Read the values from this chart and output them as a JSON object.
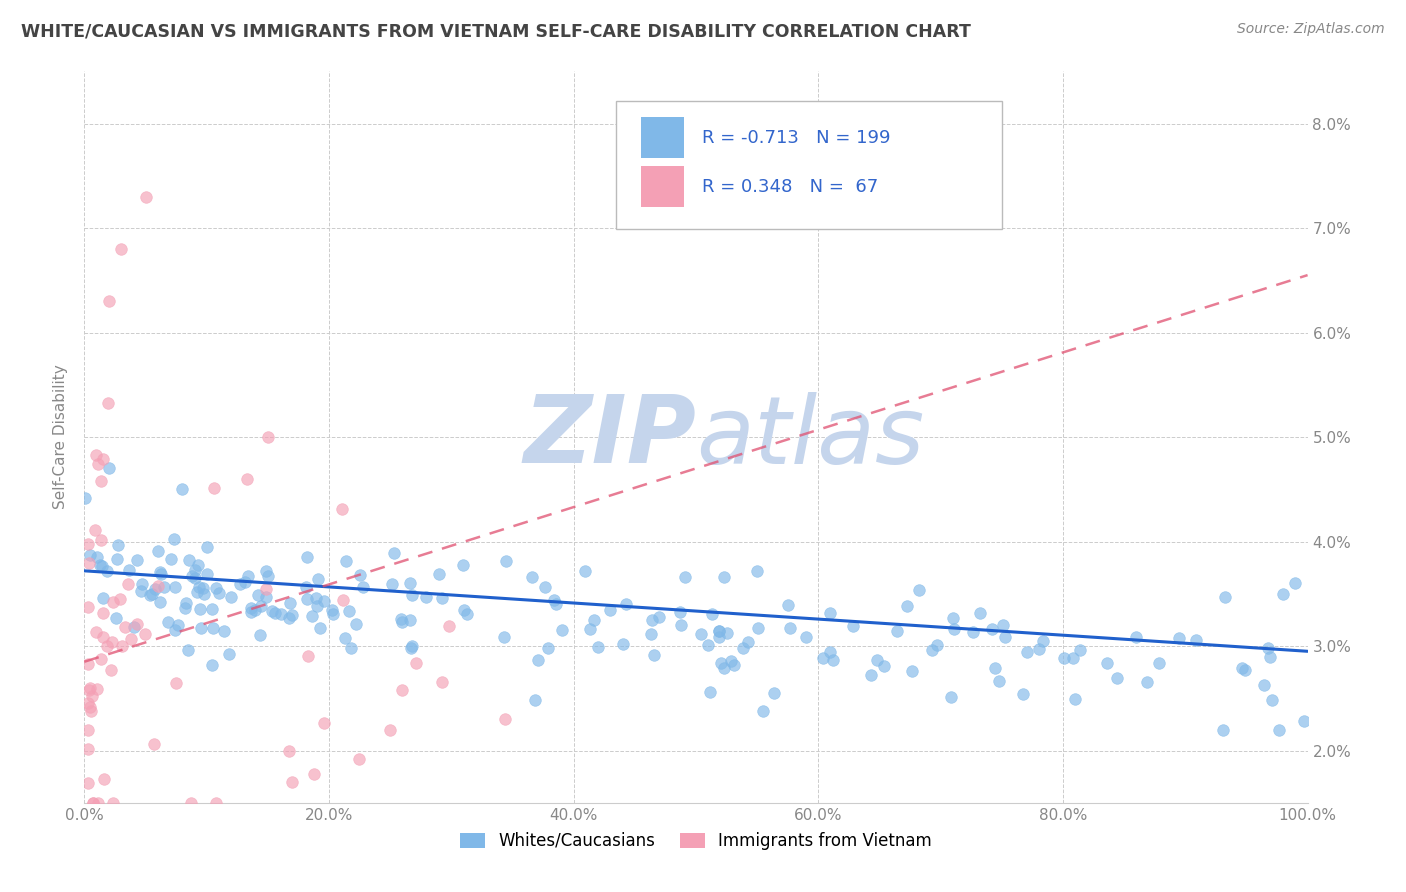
{
  "title": "WHITE/CAUCASIAN VS IMMIGRANTS FROM VIETNAM SELF-CARE DISABILITY CORRELATION CHART",
  "source_text": "Source: ZipAtlas.com",
  "ylabel": "Self-Care Disability",
  "xlim": [
    0,
    100
  ],
  "ylim": [
    1.5,
    8.5
  ],
  "yticks": [
    2.0,
    3.0,
    4.0,
    5.0,
    6.0,
    7.0,
    8.0
  ],
  "xticks": [
    0,
    20,
    40,
    60,
    80,
    100
  ],
  "xtick_labels": [
    "0.0%",
    "20.0%",
    "40.0%",
    "60.0%",
    "80.0%",
    "100.0%"
  ],
  "ytick_labels": [
    "2.0%",
    "3.0%",
    "4.0%",
    "5.0%",
    "6.0%",
    "7.0%",
    "8.0%"
  ],
  "blue_color": "#80b8e8",
  "pink_color": "#f4a0b5",
  "blue_line_color": "#2060cc",
  "pink_line_color": "#e05070",
  "title_color": "#444444",
  "source_color": "#888888",
  "grid_color": "#cccccc",
  "watermark_color_zip": "#c8d8f0",
  "watermark_color_atlas": "#c8d8f0",
  "R_blue": -0.713,
  "N_blue": 199,
  "R_pink": 0.348,
  "N_pink": 67,
  "legend_label_blue": "Whites/Caucasians",
  "legend_label_pink": "Immigrants from Vietnam",
  "blue_trend_x0": 0,
  "blue_trend_x1": 100,
  "blue_trend_y0": 3.72,
  "blue_trend_y1": 2.95,
  "pink_trend_x0": 0,
  "pink_trend_x1": 100,
  "pink_trend_y0": 2.85,
  "pink_trend_y1": 6.55
}
